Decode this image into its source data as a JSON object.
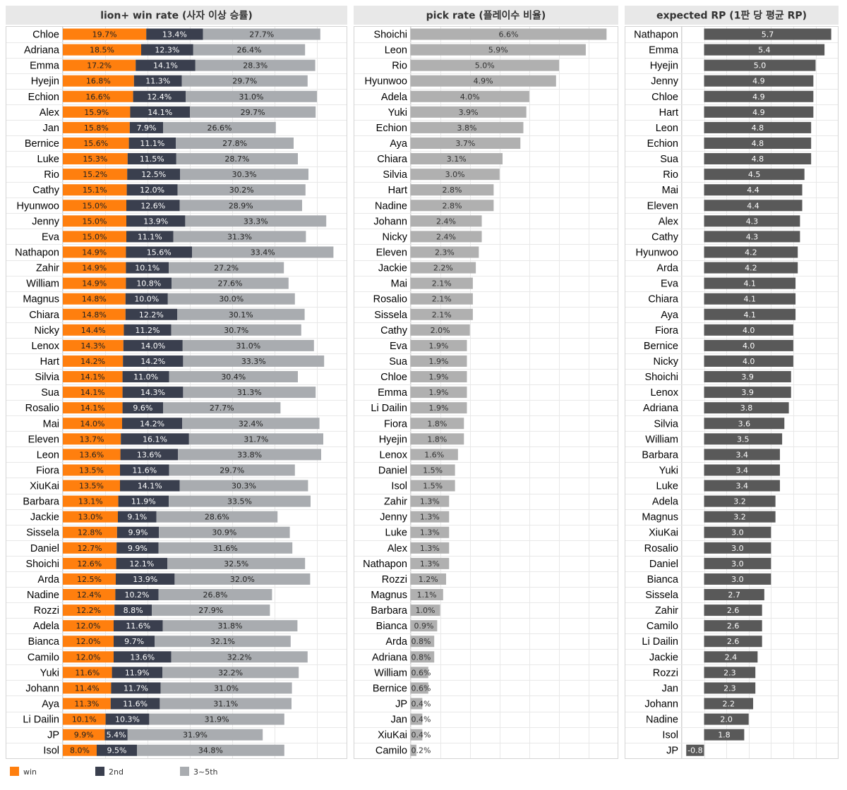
{
  "colors": {
    "win": "#ff7f0e",
    "second": "#3a3f4e",
    "third_to_fifth": "#a9acb0",
    "pick": "#b0b0b0",
    "rp": "#595959",
    "title_bg": "#e8e8e8",
    "grid": "#e8e8e8",
    "panel_border": "#d4d4d4"
  },
  "legend": [
    {
      "label": "win",
      "color": "#ff7f0e"
    },
    {
      "label": "2nd",
      "color": "#3a3f4e"
    },
    {
      "label": "3~5th",
      "color": "#a9acb0"
    }
  ],
  "chart_data": [
    {
      "type": "bar",
      "orientation": "horizontal",
      "stacked": true,
      "title": "lion+ win rate (사자 이상 승률)",
      "grid": true,
      "xlim": [
        0,
        80
      ],
      "categories": [
        "Chloe",
        "Adriana",
        "Emma",
        "Hyejin",
        "Echion",
        "Alex",
        "Jan",
        "Bernice",
        "Luke",
        "Rio",
        "Cathy",
        "Hyunwoo",
        "Jenny",
        "Eva",
        "Nathapon",
        "Zahir",
        "William",
        "Magnus",
        "Chiara",
        "Nicky",
        "Lenox",
        "Hart",
        "Silvia",
        "Sua",
        "Rosalio",
        "Mai",
        "Eleven",
        "Leon",
        "Fiora",
        "XiuKai",
        "Barbara",
        "Jackie",
        "Sissela",
        "Daniel",
        "Shoichi",
        "Arda",
        "Nadine",
        "Rozzi",
        "Adela",
        "Bianca",
        "Camilo",
        "Yuki",
        "Johann",
        "Aya",
        "Li Dailin",
        "JP",
        "Isol"
      ],
      "series": [
        {
          "name": "win",
          "values": [
            19.7,
            18.5,
            17.2,
            16.8,
            16.6,
            15.9,
            15.8,
            15.6,
            15.3,
            15.2,
            15.1,
            15.0,
            15.0,
            15.0,
            14.9,
            14.9,
            14.9,
            14.8,
            14.8,
            14.4,
            14.3,
            14.2,
            14.1,
            14.1,
            14.1,
            14.0,
            13.7,
            13.6,
            13.5,
            13.5,
            13.1,
            13.0,
            12.8,
            12.7,
            12.6,
            12.5,
            12.4,
            12.2,
            12.0,
            12.0,
            12.0,
            11.6,
            11.4,
            11.3,
            10.1,
            9.9,
            8.0
          ]
        },
        {
          "name": "2nd",
          "values": [
            13.4,
            12.3,
            14.1,
            11.3,
            12.4,
            14.1,
            7.9,
            11.1,
            11.5,
            12.5,
            12.0,
            12.6,
            13.9,
            11.1,
            15.6,
            10.1,
            10.8,
            10.0,
            12.2,
            11.2,
            14.0,
            14.2,
            11.0,
            14.3,
            9.6,
            14.2,
            16.1,
            13.6,
            11.6,
            14.1,
            11.9,
            9.1,
            9.9,
            9.9,
            12.1,
            13.9,
            10.2,
            8.8,
            11.6,
            9.7,
            13.6,
            11.9,
            11.7,
            11.6,
            10.3,
            5.4,
            9.5
          ]
        },
        {
          "name": "3~5th",
          "values": [
            27.7,
            26.4,
            28.3,
            29.7,
            31.0,
            29.7,
            26.6,
            27.8,
            28.7,
            30.3,
            30.2,
            28.9,
            33.3,
            31.3,
            33.4,
            27.2,
            27.6,
            30.0,
            30.1,
            30.7,
            31.0,
            33.3,
            30.4,
            31.3,
            27.7,
            32.4,
            31.7,
            33.8,
            29.7,
            30.3,
            33.5,
            28.6,
            30.9,
            31.6,
            32.5,
            32.0,
            26.8,
            27.9,
            31.8,
            32.1,
            32.2,
            32.2,
            31.0,
            31.1,
            31.9,
            31.9,
            34.8
          ]
        }
      ]
    },
    {
      "type": "bar",
      "orientation": "horizontal",
      "title": "pick rate (플레이수 비율)",
      "grid": true,
      "xlim": [
        0,
        7.5
      ],
      "categories": [
        "Shoichi",
        "Leon",
        "Rio",
        "Hyunwoo",
        "Adela",
        "Yuki",
        "Echion",
        "Aya",
        "Chiara",
        "Silvia",
        "Hart",
        "Nadine",
        "Johann",
        "Nicky",
        "Eleven",
        "Jackie",
        "Mai",
        "Rosalio",
        "Sissela",
        "Cathy",
        "Eva",
        "Sua",
        "Chloe",
        "Emma",
        "Li Dailin",
        "Fiora",
        "Hyejin",
        "Lenox",
        "Daniel",
        "Isol",
        "Zahir",
        "Jenny",
        "Luke",
        "Alex",
        "Nathapon",
        "Rozzi",
        "Magnus",
        "Barbara",
        "Bianca",
        "Arda",
        "Adriana",
        "William",
        "Bernice",
        "JP",
        "Jan",
        "XiuKai",
        "Camilo"
      ],
      "values": [
        6.6,
        5.9,
        5.0,
        4.9,
        4.0,
        3.9,
        3.8,
        3.7,
        3.1,
        3.0,
        2.8,
        2.8,
        2.4,
        2.4,
        2.3,
        2.2,
        2.1,
        2.1,
        2.1,
        2.0,
        1.9,
        1.9,
        1.9,
        1.9,
        1.9,
        1.8,
        1.8,
        1.6,
        1.5,
        1.5,
        1.3,
        1.3,
        1.3,
        1.3,
        1.3,
        1.2,
        1.1,
        1.0,
        0.9,
        0.8,
        0.8,
        0.6,
        0.6,
        0.4,
        0.4,
        0.4,
        0.2
      ],
      "labels": [
        "6.6%",
        "5.9%",
        "5.0%",
        "4.9%",
        "4.0%",
        "3.9%",
        "3.8%",
        "3.7%",
        "3.1%",
        "3.0%",
        "2.8%",
        "2.8%",
        "2.4%",
        "2.4%",
        "2.3%",
        "2.2%",
        "2.1%",
        "2.1%",
        "2.1%",
        "2.0%",
        "1.9%",
        "1.9%",
        "1.9%",
        "1.9%",
        "1.9%",
        "1.8%",
        "1.8%",
        "1.6%",
        "1.5%",
        "1.5%",
        "1.3%",
        "1.3%",
        "1.3%",
        "1.3%",
        "1.3%",
        "1.2%",
        "1.1%",
        "1.0%",
        "0.9%",
        "0.8%",
        "0.8%",
        "0.6%",
        "0.6%",
        "0.4%",
        "0.4%",
        "0.4%",
        "0.2%"
      ]
    },
    {
      "type": "bar",
      "orientation": "horizontal",
      "title": "expected RP (1판 당 평균 RP)",
      "grid": true,
      "xlim": [
        -1.0,
        6.0
      ],
      "categories": [
        "Nathapon",
        "Emma",
        "Hyejin",
        "Jenny",
        "Chloe",
        "Hart",
        "Leon",
        "Echion",
        "Sua",
        "Rio",
        "Mai",
        "Eleven",
        "Alex",
        "Cathy",
        "Hyunwoo",
        "Arda",
        "Eva",
        "Chiara",
        "Aya",
        "Fiora",
        "Bernice",
        "Nicky",
        "Shoichi",
        "Lenox",
        "Adriana",
        "Silvia",
        "William",
        "Barbara",
        "Yuki",
        "Luke",
        "Adela",
        "Magnus",
        "XiuKai",
        "Rosalio",
        "Daniel",
        "Bianca",
        "Sissela",
        "Zahir",
        "Camilo",
        "Li Dailin",
        "Jackie",
        "Rozzi",
        "Jan",
        "Johann",
        "Nadine",
        "Isol",
        "JP"
      ],
      "values": [
        5.7,
        5.4,
        5.0,
        4.9,
        4.9,
        4.9,
        4.8,
        4.8,
        4.8,
        4.5,
        4.4,
        4.4,
        4.3,
        4.3,
        4.2,
        4.2,
        4.1,
        4.1,
        4.1,
        4.0,
        4.0,
        4.0,
        3.9,
        3.9,
        3.8,
        3.6,
        3.5,
        3.4,
        3.4,
        3.4,
        3.2,
        3.2,
        3.0,
        3.0,
        3.0,
        3.0,
        2.7,
        2.6,
        2.6,
        2.6,
        2.4,
        2.3,
        2.3,
        2.2,
        2.0,
        1.8,
        -0.8
      ],
      "labels": [
        "5.7",
        "5.4",
        "5.0",
        "4.9",
        "4.9",
        "4.9",
        "4.8",
        "4.8",
        "4.8",
        "4.5",
        "4.4",
        "4.4",
        "4.3",
        "4.3",
        "4.2",
        "4.2",
        "4.1",
        "4.1",
        "4.1",
        "4.0",
        "4.0",
        "4.0",
        "3.9",
        "3.9",
        "3.8",
        "3.6",
        "3.5",
        "3.4",
        "3.4",
        "3.4",
        "3.2",
        "3.2",
        "3.0",
        "3.0",
        "3.0",
        "3.0",
        "2.7",
        "2.6",
        "2.6",
        "2.6",
        "2.4",
        "2.3",
        "2.3",
        "2.2",
        "2.0",
        "1.8",
        "-0.8"
      ]
    }
  ]
}
